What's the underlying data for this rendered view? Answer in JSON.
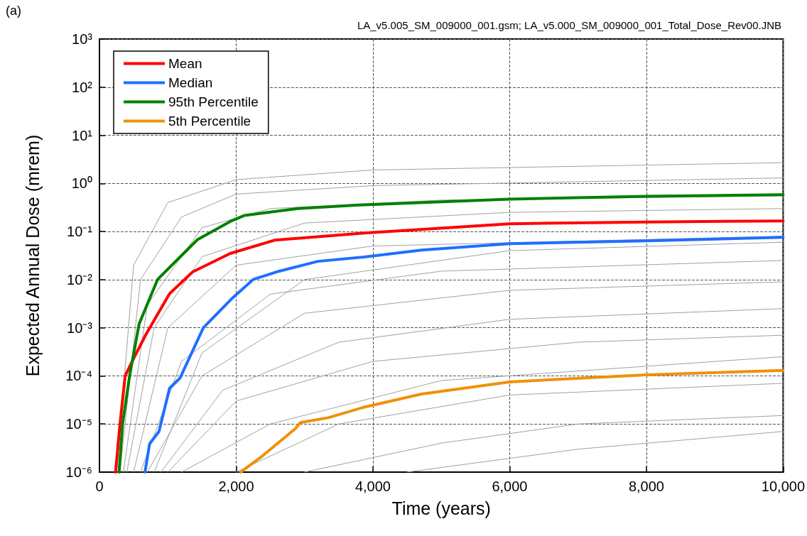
{
  "chart_data": {
    "type": "line",
    "xlabel": "Time (years)",
    "ylabel": "Expected Annual Dose (mrem)",
    "log": "y",
    "grid": true,
    "legend": "top left",
    "marker": "none",
    "line_style": "solid",
    "annotations": [
      "(a)",
      "LA_v5.005_SM_009000_001.gsm; LA_v5.000_SM_009000_001_Total_Dose_Rev00.JNB"
    ],
    "xlim": [
      0,
      10000
    ],
    "xticks": [
      0,
      {
        "value": 2000,
        "label": "2,000"
      },
      {
        "value": 4000,
        "label": "4,000"
      },
      {
        "value": 6000,
        "label": "6,000"
      },
      {
        "value": 8000,
        "label": "8,000"
      },
      {
        "value": 10000,
        "label": "10,000"
      }
    ],
    "ylim": [
      1e-06,
      1000
    ],
    "yticks": [
      {
        "value": 1e-06,
        "label": "10⁻⁶"
      },
      {
        "value": 1e-05,
        "label": "10⁻⁵"
      },
      {
        "value": 0.0001,
        "label": "10⁻⁴"
      },
      {
        "value": 0.001,
        "label": "10⁻³"
      },
      {
        "value": 0.01,
        "label": "10⁻²"
      },
      {
        "value": 0.1,
        "label": "10⁻¹"
      },
      {
        "value": 1,
        "label": "10⁰"
      },
      {
        "value": 10,
        "label": "10¹"
      },
      {
        "value": 100,
        "label": "10²"
      },
      {
        "value": 1000,
        "label": "10³"
      }
    ],
    "series": [
      {
        "color": "#a0a0a0",
        "x": [
          250,
          500,
          1000,
          2000,
          4000,
          10000
        ],
        "values": [
          1e-06,
          0.02,
          0.4,
          1.2,
          1.9,
          2.7
        ]
      },
      {
        "color": "#a0a0a0",
        "x": [
          300,
          600,
          1200,
          2000,
          4000,
          10000
        ],
        "values": [
          1e-06,
          0.01,
          0.2,
          0.6,
          0.9,
          1.3
        ]
      },
      {
        "color": "#a0a0a0",
        "x": [
          350,
          700,
          1500,
          2500,
          5000,
          10000
        ],
        "values": [
          1e-06,
          0.003,
          0.12,
          0.3,
          0.45,
          0.55
        ]
      },
      {
        "color": "#a0a0a0",
        "x": [
          400,
          800,
          1500,
          3000,
          6000,
          10000
        ],
        "values": [
          1e-06,
          0.001,
          0.03,
          0.15,
          0.25,
          0.3
        ]
      },
      {
        "color": "#a0a0a0",
        "x": [
          500,
          1000,
          2000,
          4000,
          10000
        ],
        "values": [
          1e-06,
          0.001,
          0.02,
          0.05,
          0.08
        ]
      },
      {
        "color": "#a0a0a0",
        "x": [
          800,
          1500,
          3000,
          6000,
          10000
        ],
        "values": [
          1e-06,
          0.0003,
          0.01,
          0.04,
          0.06
        ]
      },
      {
        "color": "#a0a0a0",
        "x": [
          600,
          1200,
          2500,
          5000,
          10000
        ],
        "values": [
          1e-06,
          0.0002,
          0.005,
          0.015,
          0.025
        ]
      },
      {
        "color": "#a0a0a0",
        "x": [
          700,
          1500,
          3000,
          6000,
          10000
        ],
        "values": [
          1e-06,
          0.0001,
          0.002,
          0.006,
          0.009
        ]
      },
      {
        "color": "#a0a0a0",
        "x": [
          900,
          1800,
          3500,
          6000,
          10000
        ],
        "values": [
          1e-06,
          5e-05,
          0.0005,
          0.0015,
          0.0025
        ]
      },
      {
        "color": "#a0a0a0",
        "x": [
          1000,
          2000,
          4000,
          7000,
          10000
        ],
        "values": [
          1e-06,
          3e-05,
          0.0002,
          0.0005,
          0.0007
        ]
      },
      {
        "color": "#a0a0a0",
        "x": [
          1200,
          2500,
          5000,
          10000
        ],
        "values": [
          1e-06,
          1e-05,
          8e-05,
          0.00025
        ]
      },
      {
        "color": "#a0a0a0",
        "x": [
          2000,
          3500,
          6000,
          10000
        ],
        "values": [
          1e-06,
          1e-05,
          4e-05,
          7e-05
        ]
      },
      {
        "color": "#a0a0a0",
        "x": [
          3000,
          5000,
          7000,
          10000
        ],
        "values": [
          1e-06,
          4e-06,
          1e-05,
          1.5e-05
        ]
      },
      {
        "color": "#a0a0a0",
        "x": [
          4500,
          7000,
          10000
        ],
        "values": [
          1e-06,
          3e-06,
          7e-06
        ]
      },
      {
        "name": "Mean",
        "color": "#ff0000",
        "x": [
          236,
          300,
          376,
          500,
          683,
          1025,
          1363,
          1913,
          2561,
          3873,
          6000,
          8000,
          10000
        ],
        "values": [
          1e-06,
          1e-05,
          0.0001,
          0.00023,
          0.00074,
          0.0051,
          0.0145,
          0.035,
          0.066,
          0.093,
          0.145,
          0.158,
          0.166
        ]
      },
      {
        "name": "Median",
        "color": "#1f6fff",
        "x": [
          666,
          734,
          871,
          1025,
          1178,
          1520,
          1926,
          2254,
          2630,
          3193,
          3873,
          4713,
          6000,
          8000,
          10000
        ],
        "values": [
          1e-06,
          3.9e-06,
          7e-06,
          5.5e-05,
          9e-05,
          0.001,
          0.0039,
          0.0102,
          0.015,
          0.024,
          0.0295,
          0.041,
          0.056,
          0.064,
          0.076
        ]
      },
      {
        "name": "95th Percentile",
        "color": "#008000",
        "x": [
          287,
          338,
          441,
          580,
          852,
          1434,
          1913,
          2117,
          2902,
          3873,
          6000,
          8000,
          10000
        ],
        "values": [
          1e-06,
          1e-05,
          0.0001,
          0.0012,
          0.0102,
          0.068,
          0.162,
          0.215,
          0.3,
          0.36,
          0.47,
          0.54,
          0.58
        ]
      },
      {
        "name": "5th Percentile",
        "color": "#f0900a",
        "x": [
          2066,
          2389,
          2869,
          2937,
          3346,
          3873,
          4713,
          6000,
          8000,
          10000
        ],
        "values": [
          1e-06,
          2.2e-06,
          8.1e-06,
          1.07e-05,
          1.35e-05,
          2.24e-05,
          4.2e-05,
          7.5e-05,
          0.000105,
          0.00013
        ]
      }
    ]
  }
}
